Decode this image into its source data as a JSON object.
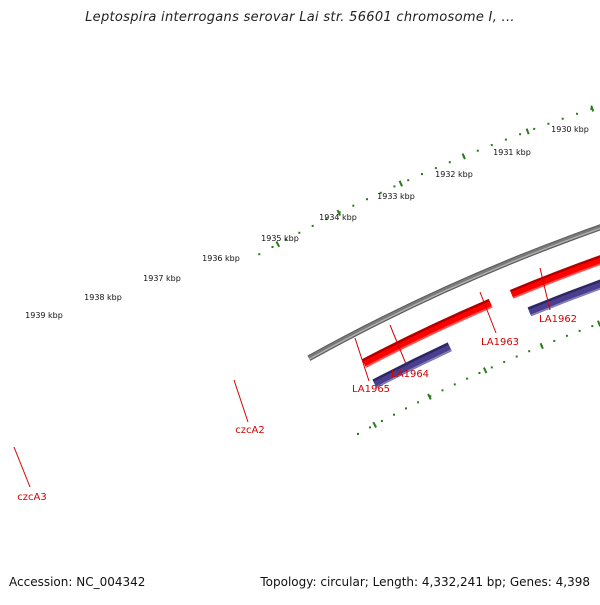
{
  "title": "Leptospira interrogans serovar Lai str. 56601 chromosome I, ...",
  "footer": {
    "accession": "Accession: NC_004342",
    "summary": "Topology: circular; Length: 4,332,241 bp; Genes: 4,398"
  },
  "scale_labels": [
    "1930 kbp",
    "1931 kbp",
    "1932 kbp",
    "1933 kbp",
    "1934 kbp",
    "1935 kbp",
    "1936 kbp",
    "1937 kbp",
    "1938 kbp",
    "1939 kbp"
  ],
  "gene_labels": [
    "LA1962",
    "LA1963",
    "LA1964",
    "LA1965",
    "czcA2",
    "czcA3"
  ],
  "colors": {
    "backbone": "#7a7a7a",
    "gene_red": "#ff0000",
    "gene_blue": "#4a3f8f",
    "gene_lime": "#a8ff2e",
    "gene_olive": "#5a7a2a",
    "ticks": "#2a7a1a",
    "label_red": "#d40000"
  }
}
